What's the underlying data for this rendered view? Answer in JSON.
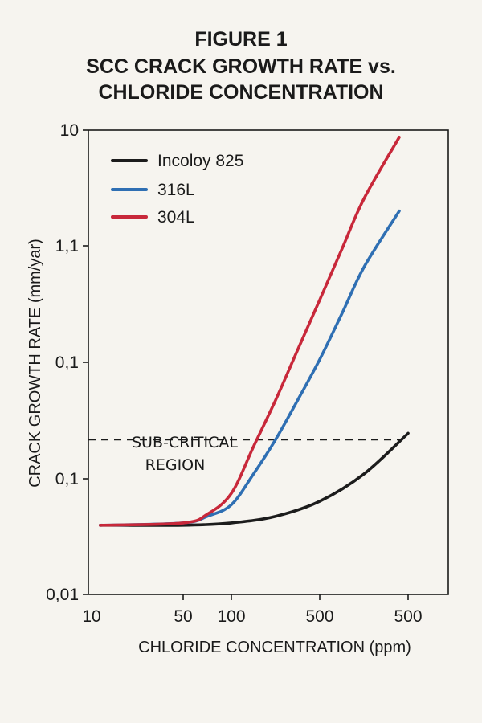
{
  "chart_data": {
    "type": "line",
    "title": [
      "FIGURE 1",
      "SCC CRACK GROWTH RATE vs.",
      "CHLORIDE CONCENTRATION"
    ],
    "xlabel": "CHLORIDE CONCENTRATION (ppm)",
    "ylabel": "CRACK GROWTH RATE (mm/yar)",
    "x_ticks": [
      "10",
      "50",
      "100",
      "500",
      "500"
    ],
    "y_ticks": [
      "10",
      "1,1",
      "0,1",
      "0,1",
      "0,01"
    ],
    "y_scale": "log",
    "ylim": [
      0.01,
      10
    ],
    "grid": false,
    "legend_position": "top-left",
    "threshold": {
      "value": 0.1,
      "label": [
        "SUB-CRITICAL",
        "REGION"
      ],
      "style": "dashed"
    },
    "series": [
      {
        "name": "Incoloy 825",
        "color": "#1c1c1c",
        "x": [
          15,
          50,
          100,
          200,
          300,
          400,
          500
        ],
        "y": [
          0.028,
          0.028,
          0.029,
          0.032,
          0.04,
          0.06,
          0.11
        ]
      },
      {
        "name": "316L",
        "color": "#2f6fb3",
        "x": [
          15,
          50,
          75,
          100,
          150,
          200,
          250,
          300,
          350,
          400,
          480
        ],
        "y": [
          0.028,
          0.029,
          0.032,
          0.038,
          0.06,
          0.1,
          0.18,
          0.33,
          0.65,
          1.3,
          3.0
        ]
      },
      {
        "name": "304L",
        "color": "#c8283a",
        "x": [
          15,
          50,
          75,
          100,
          150,
          200,
          250,
          300,
          350,
          400,
          480
        ],
        "y": [
          0.028,
          0.029,
          0.033,
          0.045,
          0.09,
          0.18,
          0.38,
          0.8,
          1.7,
          3.6,
          9.0
        ]
      }
    ]
  }
}
